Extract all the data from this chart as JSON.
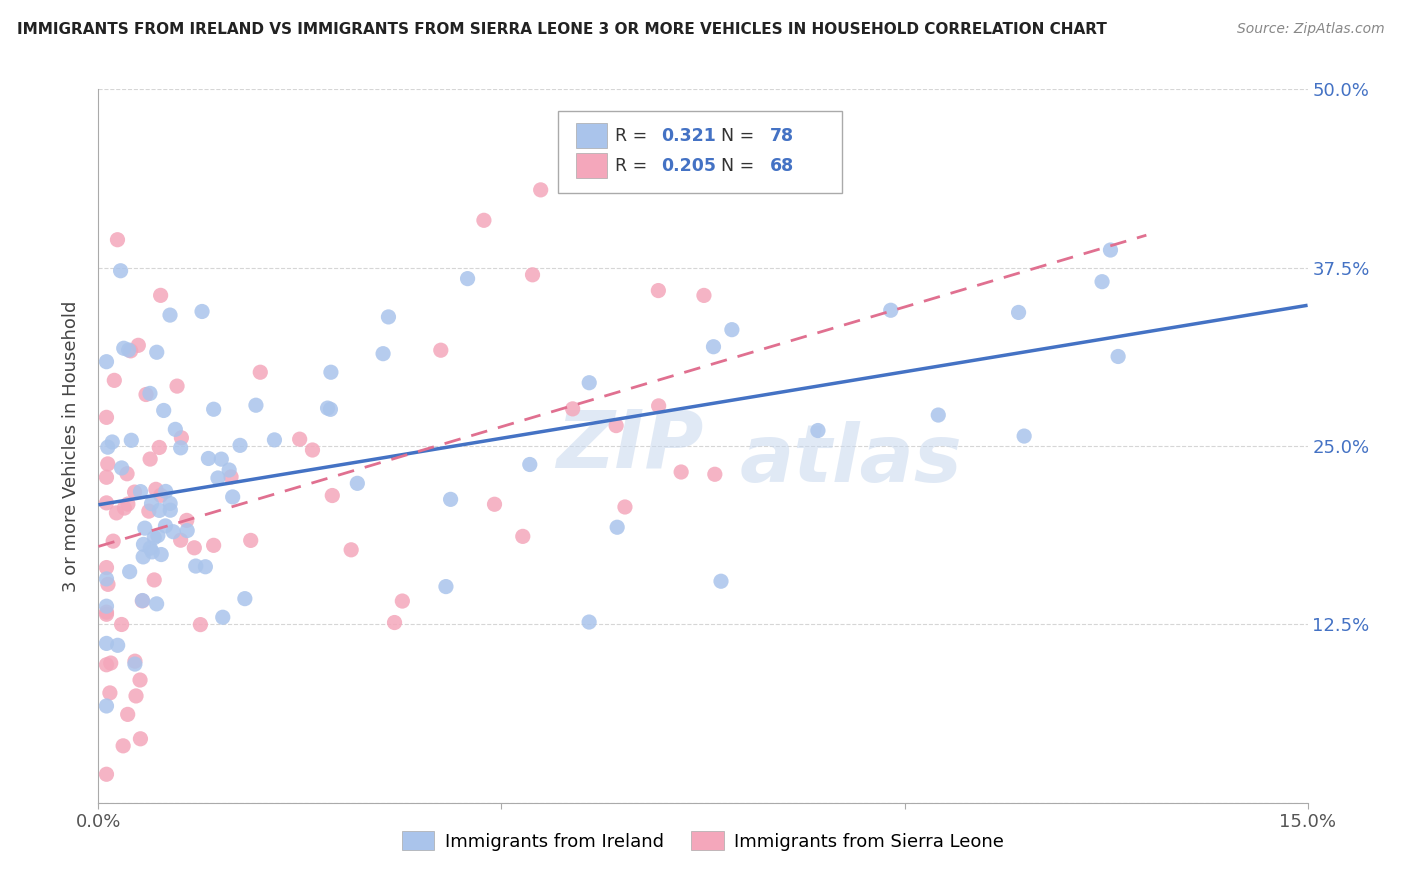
{
  "title": "IMMIGRANTS FROM IRELAND VS IMMIGRANTS FROM SIERRA LEONE 3 OR MORE VEHICLES IN HOUSEHOLD CORRELATION CHART",
  "source": "Source: ZipAtlas.com",
  "ylabel": "3 or more Vehicles in Household",
  "xlim": [
    0.0,
    0.15
  ],
  "ylim": [
    0.0,
    0.5
  ],
  "xtick_vals": [
    0.0,
    0.05,
    0.1,
    0.15
  ],
  "xtick_labels": [
    "0.0%",
    "",
    "",
    "15.0%"
  ],
  "ytick_vals": [
    0.0,
    0.125,
    0.25,
    0.375,
    0.5
  ],
  "ytick_labels": [
    "",
    "12.5%",
    "25.0%",
    "37.5%",
    "50.0%"
  ],
  "ireland_R": "0.321",
  "ireland_N": "78",
  "sierra_leone_R": "0.205",
  "sierra_leone_N": "68",
  "ireland_color": "#aac4eb",
  "ireland_line_color": "#4472c4",
  "sierra_leone_color": "#f4a7bb",
  "sierra_leone_line_color": "#e07090",
  "tick_color": "#4472c4",
  "grid_color": "#cccccc",
  "ireland_line_intercept": 0.2,
  "ireland_line_slope": 1.2,
  "sierra_line_intercept": 0.185,
  "sierra_line_slope": 0.8
}
